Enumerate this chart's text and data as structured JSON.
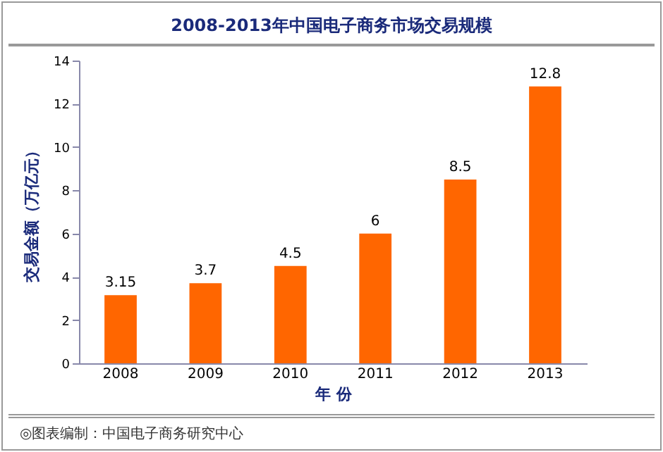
{
  "chart_data": {
    "type": "bar",
    "title": "2008-2013年中国电子商务市场交易规模",
    "xlabel": "年 份",
    "ylabel": "交易金额（万亿元）",
    "categories": [
      "2008",
      "2009",
      "2010",
      "2011",
      "2012",
      "2013"
    ],
    "values": [
      3.15,
      3.7,
      4.5,
      6,
      8.5,
      12.8
    ],
    "color": "#ff6600",
    "ylim": [
      0,
      14
    ],
    "yticks": [
      0,
      2,
      4,
      6,
      8,
      10,
      12,
      14
    ],
    "grid": false,
    "data_labels": true,
    "annotations": [
      "◎图表编制：中国电子商务研究中心"
    ]
  }
}
